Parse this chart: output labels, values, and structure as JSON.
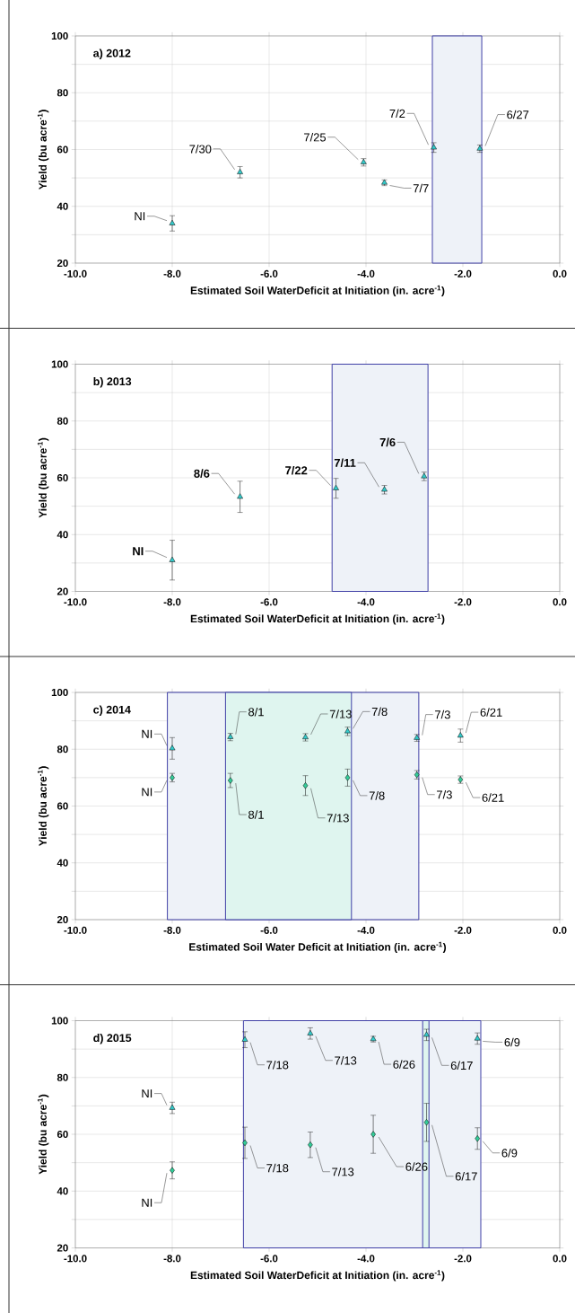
{
  "chart_data": [
    {
      "type": "scatter",
      "title": "a) 2012",
      "xlabel": "Estimated Soil WaterDeficit at Initiation (in. acre$^{-1}$)",
      "ylabel": "Yield (bu acre$^{-1}$)",
      "xlim": [
        -10,
        0
      ],
      "ylim": [
        20,
        100
      ],
      "xticks": [
        {
          "value": -10,
          "label": "-10.0"
        },
        {
          "value": -8,
          "label": "-8.0"
        },
        {
          "value": -6,
          "label": "-6.0"
        },
        {
          "value": -4,
          "label": "-4.0"
        },
        {
          "value": -2,
          "label": "-2.0"
        },
        {
          "value": 0,
          "label": "0.0"
        }
      ],
      "yticks": [
        20,
        {
          "value": 30,
          "label": null
        },
        40,
        {
          "value": 50,
          "label": null
        },
        60,
        {
          "value": 70,
          "label": null
        },
        80,
        {
          "value": 90,
          "label": null
        },
        100
      ],
      "grid": true,
      "bands": [
        {
          "axis": "x",
          "from": -2.63,
          "to": -1.61,
          "color": "#eef2f8"
        }
      ],
      "series": [
        {
          "color": "#33cccc",
          "marker": "triangle",
          "x": [
            -8.0,
            -6.6,
            -4.05,
            -3.62,
            -2.6,
            -1.65
          ],
          "values": [
            34,
            52,
            55.5,
            48.3,
            60.7,
            60.3
          ],
          "errors": [
            2.7,
            2,
            1.3,
            1,
            1.7,
            1.3
          ]
        }
      ],
      "annotations": [
        {
          "text": "NI",
          "x": -8.0,
          "y": 34
        },
        {
          "text": "7/30",
          "x": -6.6,
          "y": 52
        },
        {
          "text": "7/25",
          "x": -4.05,
          "y": 55.5
        },
        {
          "text": "7/7",
          "x": -3.62,
          "y": 48.3
        },
        {
          "text": "7/2",
          "x": -2.6,
          "y": 60.7
        },
        {
          "text": "6/27",
          "x": -1.65,
          "y": 60.3
        }
      ]
    },
    {
      "type": "scatter",
      "title": "b) 2013",
      "xlabel": "Estimated Soil WaterDeficit at Initiation (in. acre$^{-1}$)",
      "ylabel": "Yield (bu acre$^{-1}$)",
      "xlim": [
        -10,
        0
      ],
      "ylim": [
        20,
        100
      ],
      "xticks": [
        {
          "value": -10,
          "label": "-10.0"
        },
        {
          "value": -8,
          "label": "-8.0"
        },
        {
          "value": -6,
          "label": "-6.0"
        },
        {
          "value": -4,
          "label": "-4.0"
        },
        {
          "value": -2,
          "label": "-2.0"
        },
        {
          "value": 0,
          "label": "0.0"
        }
      ],
      "yticks": [
        20,
        {
          "value": 30,
          "label": null
        },
        40,
        {
          "value": 50,
          "label": null
        },
        60,
        {
          "value": 70,
          "label": null
        },
        80,
        {
          "value": 90,
          "label": null
        },
        100
      ],
      "grid": true,
      "bands": [
        {
          "axis": "x",
          "from": -4.7,
          "to": -2.72,
          "color": "#eef2f8"
        }
      ],
      "series": [
        {
          "color": "#33cccc",
          "marker": "triangle",
          "x": [
            -8.0,
            -6.6,
            -4.62,
            -3.62,
            -2.8
          ],
          "values": [
            31,
            53.3,
            56.3,
            55.8,
            60.5
          ],
          "errors": [
            7,
            5.5,
            3.5,
            1.5,
            1.5
          ]
        }
      ],
      "annotations": [
        {
          "text": "NI",
          "x": -8.0,
          "y": 31
        },
        {
          "text": "8/6",
          "x": -6.6,
          "y": 53.3
        },
        {
          "text": "7/22",
          "x": -4.62,
          "y": 56.3
        },
        {
          "text": "7/11",
          "x": -3.62,
          "y": 55.8
        },
        {
          "text": "7/6",
          "x": -2.8,
          "y": 60.5
        }
      ]
    },
    {
      "type": "scatter",
      "title": "c) 2014",
      "xlabel": "Estimated Soil Water Deficit at Initiation (in. acre$^{-1}$)",
      "ylabel": "Yield (bu acre$^{-1}$)",
      "xlim": [
        -10,
        0
      ],
      "ylim": [
        20,
        100
      ],
      "xticks": [
        {
          "value": -10,
          "label": "-10.0"
        },
        {
          "value": -8,
          "label": "-8.0"
        },
        {
          "value": -6,
          "label": "-6.0"
        },
        {
          "value": -4,
          "label": "-4.0"
        },
        {
          "value": -2,
          "label": "-2.0"
        },
        {
          "value": 0,
          "label": "0.0"
        }
      ],
      "yticks": [
        20,
        {
          "value": 30,
          "label": null
        },
        40,
        {
          "value": 50,
          "label": null
        },
        60,
        {
          "value": 70,
          "label": null
        },
        80,
        {
          "value": 90,
          "label": null
        },
        100
      ],
      "grid": true,
      "bands": [
        {
          "axis": "x",
          "from": -8.1,
          "to": -2.91,
          "color": "#eef2f8"
        },
        {
          "axis": "x",
          "from": -6.9,
          "to": -4.3,
          "color": "#dff5ef"
        }
      ],
      "series": [
        {
          "color": "#33cc99",
          "marker": "diamond",
          "x": [
            -8.0,
            -6.8,
            -5.25,
            -4.38,
            -2.95,
            -2.05
          ],
          "values": [
            70,
            69,
            67.2,
            70,
            71,
            69.3
          ],
          "errors": [
            1.5,
            2.5,
            3.5,
            3,
            1.5,
            1.3
          ]
        },
        {
          "color": "#33cccc",
          "marker": "triangle",
          "x": [
            -8.0,
            -6.8,
            -5.25,
            -4.38,
            -2.95,
            -2.05
          ],
          "values": [
            80.3,
            84.3,
            84.2,
            86.3,
            84,
            84.8
          ],
          "errors": [
            3.8,
            1.3,
            1.3,
            1.5,
            1.2,
            2.3
          ]
        }
      ],
      "annotations": [
        {
          "text": "NI",
          "x": -8.0,
          "y": 80.3
        },
        {
          "text": "8/1",
          "x": -6.8,
          "y": 84.3
        },
        {
          "text": "7/13",
          "x": -5.25,
          "y": 84.2
        },
        {
          "text": "7/8",
          "x": -4.38,
          "y": 86.3
        },
        {
          "text": "7/3",
          "x": -2.95,
          "y": 84
        },
        {
          "text": "6/21",
          "x": -2.05,
          "y": 84.8
        },
        {
          "text": "NI",
          "x": -8.0,
          "y": 70
        },
        {
          "text": "8/1",
          "x": -6.8,
          "y": 69
        },
        {
          "text": "7/13",
          "x": -5.25,
          "y": 67.2
        },
        {
          "text": "7/8",
          "x": -4.38,
          "y": 70
        },
        {
          "text": "7/3",
          "x": -2.95,
          "y": 71
        },
        {
          "text": "6/21",
          "x": -2.05,
          "y": 69.3
        }
      ]
    },
    {
      "type": "scatter",
      "title": "d) 2015",
      "xlabel": "Estimated Soil WaterDeficit at Initiation (in. acre$^{-1}$)",
      "ylabel": "Yield (bu acre$^{-1}$)",
      "xlim": [
        -10,
        0
      ],
      "ylim": [
        20,
        100
      ],
      "xticks": [
        {
          "value": -10,
          "label": "-10.0"
        },
        {
          "value": -8,
          "label": "-8.0"
        },
        {
          "value": -6,
          "label": "-6.0"
        },
        {
          "value": -4,
          "label": "-4.0"
        },
        {
          "value": -2,
          "label": "-2.0"
        },
        {
          "value": 0,
          "label": "0.0"
        }
      ],
      "yticks": [
        20,
        {
          "value": 30,
          "label": null
        },
        40,
        {
          "value": 50,
          "label": null
        },
        60,
        {
          "value": 70,
          "label": null
        },
        80,
        {
          "value": 90,
          "label": null
        },
        100
      ],
      "grid": true,
      "bands": [
        {
          "axis": "x",
          "from": -6.53,
          "to": -1.63,
          "color": "#eef2f8"
        },
        {
          "axis": "x",
          "from": -2.83,
          "to": -2.7,
          "color": "#dff5ef"
        }
      ],
      "series": [
        {
          "color": "#33cc99",
          "marker": "diamond",
          "x": [
            -8.0,
            -6.5,
            -5.15,
            -3.85,
            -2.75,
            -1.7
          ],
          "values": [
            47.3,
            57,
            56.3,
            60,
            64.2,
            58.5
          ],
          "errors": [
            3,
            5.5,
            4.5,
            6.7,
            6.7,
            3.8
          ]
        },
        {
          "color": "#33cccc",
          "marker": "triangle",
          "x": [
            -8.0,
            -6.5,
            -5.15,
            -3.85,
            -2.75,
            -1.7
          ],
          "values": [
            69.3,
            93.3,
            95.5,
            93.5,
            95,
            93.7
          ],
          "errors": [
            2,
            2.8,
            2,
            1,
            2,
            2
          ]
        }
      ],
      "annotations": [
        {
          "text": "NI",
          "x": -8.0,
          "y": 69.3
        },
        {
          "text": "7/18",
          "x": -6.5,
          "y": 93.3
        },
        {
          "text": "7/13",
          "x": -5.15,
          "y": 95.5
        },
        {
          "text": "6/26",
          "x": -3.85,
          "y": 93.5
        },
        {
          "text": "6/17",
          "x": -2.75,
          "y": 95
        },
        {
          "text": "6/9",
          "x": -1.7,
          "y": 93.7
        },
        {
          "text": "NI",
          "x": -8.0,
          "y": 47.3
        },
        {
          "text": "7/18",
          "x": -6.5,
          "y": 57
        },
        {
          "text": "7/13",
          "x": -5.15,
          "y": 56.3
        },
        {
          "text": "6/26",
          "x": -3.85,
          "y": 60
        },
        {
          "text": "6/17",
          "x": -2.75,
          "y": 64.2
        },
        {
          "text": "6/9",
          "x": -1.7,
          "y": 58.5
        }
      ]
    }
  ]
}
